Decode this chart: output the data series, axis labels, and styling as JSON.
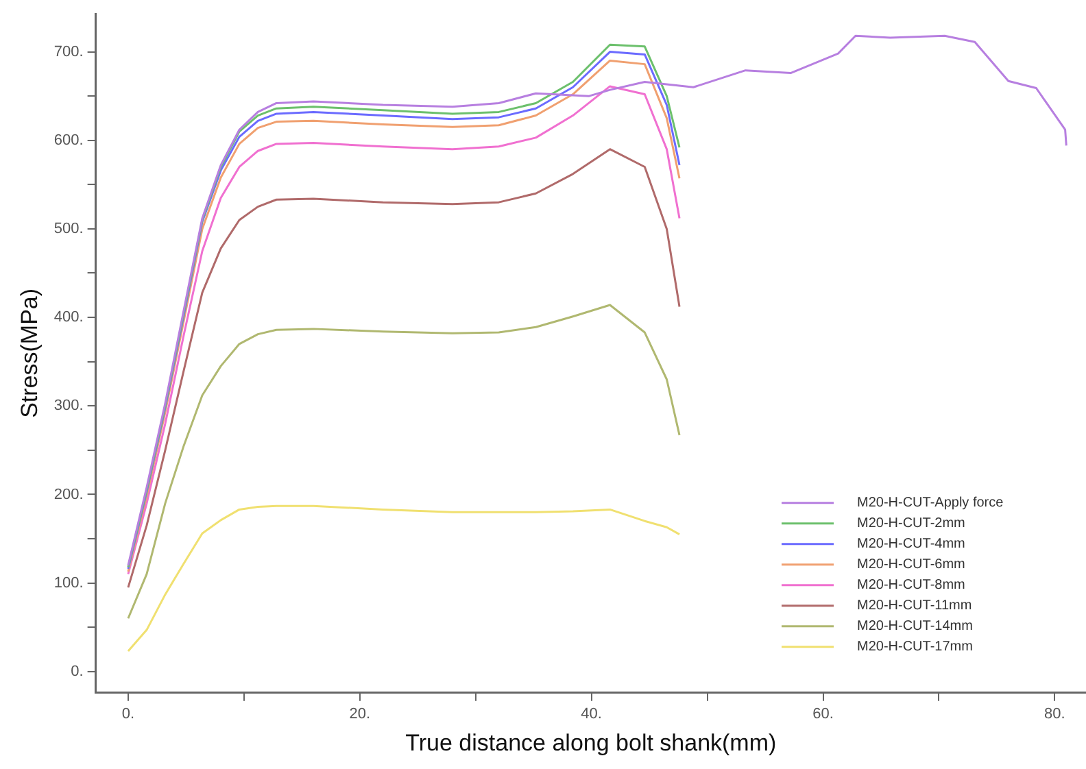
{
  "chart_data": {
    "type": "line",
    "xlabel": "True distance along bolt shank(mm)",
    "ylabel": "Stress(MPa)",
    "x": [
      0,
      1.6,
      3.2,
      4.8,
      6.4,
      8,
      9.6,
      11.2,
      12.8,
      16,
      22,
      28,
      32,
      35.2,
      38.4,
      41.6,
      44.6,
      46.5,
      47.6
    ],
    "xlim": [
      -2.8,
      82.7
    ],
    "ylim": [
      -24,
      743
    ],
    "xticks": [
      {
        "value": 0,
        "label": "0."
      },
      {
        "value": 10,
        "label": null
      },
      {
        "value": 20,
        "label": "20."
      },
      {
        "value": 30,
        "label": null
      },
      {
        "value": 40,
        "label": "40."
      },
      {
        "value": 50,
        "label": null
      },
      {
        "value": 60,
        "label": "60."
      },
      {
        "value": 70,
        "label": null
      },
      {
        "value": 80,
        "label": "80."
      }
    ],
    "yticks": [
      {
        "value": 0,
        "label": "0."
      },
      {
        "value": 50,
        "label": null
      },
      {
        "value": 100,
        "label": "100."
      },
      {
        "value": 150,
        "label": null
      },
      {
        "value": 200,
        "label": "200."
      },
      {
        "value": 250,
        "label": null
      },
      {
        "value": 300,
        "label": "300."
      },
      {
        "value": 350,
        "label": null
      },
      {
        "value": 400,
        "label": "400."
      },
      {
        "value": 450,
        "label": null
      },
      {
        "value": 500,
        "label": "500."
      },
      {
        "value": 550,
        "label": null
      },
      {
        "value": 600,
        "label": "600."
      },
      {
        "value": 650,
        "label": null
      },
      {
        "value": 700,
        "label": "700."
      }
    ],
    "grid": false,
    "legend": "bottom right",
    "marker": "none",
    "line_style": "solid",
    "series": [
      {
        "name": "M20-H-CUT-Apply force",
        "color": "#b77fe0",
        "x": [
          0,
          1.6,
          3.2,
          4.8,
          6.4,
          8,
          9.6,
          11.2,
          12.8,
          16,
          22,
          28,
          32,
          35.2,
          39.8,
          41.6,
          44.6,
          48.8,
          53.3,
          57.2,
          61.3,
          62.8,
          65.8,
          70.5,
          73.1,
          76,
          78.4,
          80.9,
          81
        ],
        "values": [
          120,
          208,
          303,
          408,
          512,
          572,
          612,
          632,
          642,
          644,
          640,
          638,
          642,
          653,
          650,
          657,
          666,
          660,
          679,
          676,
          698,
          718,
          716,
          718,
          711,
          667,
          659,
          612,
          594
        ]
      },
      {
        "name": "M20-H-CUT-2mm",
        "color": "#6cc06c",
        "values": [
          118,
          205,
          300,
          405,
          510,
          570,
          610,
          628,
          636,
          638,
          634,
          630,
          632,
          642,
          666,
          708,
          706,
          650,
          592
        ]
      },
      {
        "name": "M20-H-CUT-4mm",
        "color": "#6b6bff",
        "values": [
          116,
          203,
          298,
          402,
          508,
          566,
          604,
          622,
          630,
          632,
          628,
          624,
          626,
          636,
          660,
          700,
          697,
          640,
          572
        ]
      },
      {
        "name": "M20-H-CUT-6mm",
        "color": "#f0a070",
        "values": [
          113,
          198,
          293,
          396,
          500,
          558,
          596,
          614,
          621,
          622,
          618,
          615,
          617,
          628,
          652,
          690,
          686,
          625,
          557
        ]
      },
      {
        "name": "M20-H-CUT-8mm",
        "color": "#f070d0",
        "values": [
          110,
          190,
          280,
          380,
          475,
          535,
          570,
          588,
          596,
          597,
          593,
          590,
          593,
          603,
          628,
          661,
          652,
          590,
          512
        ]
      },
      {
        "name": "M20-H-CUT-11mm",
        "color": "#b06a6a",
        "values": [
          95,
          165,
          250,
          340,
          428,
          478,
          510,
          525,
          533,
          534,
          530,
          528,
          530,
          540,
          562,
          590,
          570,
          500,
          412
        ]
      },
      {
        "name": "M20-H-CUT-14mm",
        "color": "#b0b870",
        "values": [
          60,
          110,
          190,
          255,
          312,
          345,
          370,
          381,
          386,
          387,
          384,
          382,
          383,
          389,
          401,
          414,
          383,
          330,
          267
        ]
      },
      {
        "name": "M20-H-CUT-17mm",
        "color": "#f0e070",
        "values": [
          23,
          47,
          87,
          122,
          156,
          171,
          183,
          186,
          187,
          187,
          183,
          180,
          180,
          180,
          181,
          183,
          170,
          163,
          155
        ]
      }
    ]
  }
}
